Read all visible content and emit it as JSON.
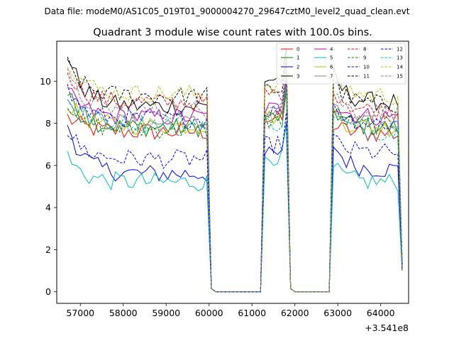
{
  "chart_data": {
    "type": "line",
    "suptitle": "Data file: modeM0/AS1C05_019T01_9000004270_29647cztM0_level2_quad_clean.evt",
    "title": "Quadrant 3 module wise count rates with 100.0s bins.",
    "xlabel": "",
    "ylabel": "",
    "x_offset_label": "+3.541e8",
    "xlim": [
      56450,
      64650
    ],
    "ylim": [
      -0.55,
      11.9
    ],
    "xticks": [
      57000,
      58000,
      59000,
      60000,
      61000,
      62000,
      63000,
      64000
    ],
    "xtick_labels": [
      "57000",
      "58000",
      "59000",
      "60000",
      "61000",
      "62000",
      "63000",
      "64000"
    ],
    "yticks": [
      0,
      2,
      4,
      6,
      8,
      10
    ],
    "ytick_labels": [
      "0",
      "2",
      "4",
      "6",
      "8",
      "10"
    ],
    "segments": [
      {
        "start": 56700,
        "end": 59950,
        "n": 33
      },
      {
        "start": 59950,
        "end": 61200,
        "n": 13,
        "zero": true
      },
      {
        "start": 61200,
        "end": 61800,
        "n": 7
      },
      {
        "start": 61800,
        "end": 62800,
        "n": 11,
        "zero": true
      },
      {
        "start": 62800,
        "end": 64500,
        "n": 18
      }
    ],
    "series": [
      {
        "name": "0",
        "color": "#ff0000",
        "dashed": false,
        "base": 7.6,
        "seg3": 8.2,
        "seg5": 7.5,
        "start": 8.3
      },
      {
        "name": "1",
        "color": "#008000",
        "dashed": false,
        "base": 7.8,
        "seg3": 8.3,
        "seg5": 7.8,
        "start": 9.4
      },
      {
        "name": "2",
        "color": "#0000ff",
        "dashed": false,
        "base": 5.6,
        "seg3": 6.5,
        "seg5": 5.8,
        "start": 8.0
      },
      {
        "name": "3",
        "color": "#000000",
        "dashed": false,
        "base": 8.8,
        "seg3": 10.1,
        "seg5": 9.0,
        "start": 11.3
      },
      {
        "name": "4",
        "color": "#bf00bf",
        "dashed": false,
        "base": 8.3,
        "seg3": 8.7,
        "seg5": 8.3,
        "start": 9.5
      },
      {
        "name": "5",
        "color": "#00bfbf",
        "dashed": false,
        "base": 5.2,
        "seg3": 6.4,
        "seg5": 5.2,
        "start": 6.4
      },
      {
        "name": "6",
        "color": "#bfbf00",
        "dashed": false,
        "base": 7.9,
        "seg3": 8.3,
        "seg5": 7.8,
        "start": 9.0
      },
      {
        "name": "7",
        "color": "#808080",
        "dashed": false,
        "base": 8.0,
        "seg3": 8.5,
        "seg5": 7.9,
        "start": 9.2
      },
      {
        "name": "8",
        "color": "#ff0000",
        "dashed": true,
        "base": 9.0,
        "seg3": 9.4,
        "seg5": 8.6,
        "start": 10.6
      },
      {
        "name": "9",
        "color": "#008000",
        "dashed": true,
        "base": 7.7,
        "seg3": 8.1,
        "seg5": 7.9,
        "start": 9.1
      },
      {
        "name": "10",
        "color": "#0000ff",
        "dashed": true,
        "base": 6.3,
        "seg3": 7.0,
        "seg5": 6.6,
        "start": 7.7
      },
      {
        "name": "11",
        "color": "#000000",
        "dashed": true,
        "base": 9.3,
        "seg3": 9.6,
        "seg5": 8.9,
        "start": 10.8
      },
      {
        "name": "12",
        "color": "#0000ff",
        "dashed": true,
        "base": 8.2,
        "seg3": 8.6,
        "seg5": 8.0,
        "start": 9.6
      },
      {
        "name": "13",
        "color": "#00bfbf",
        "dashed": true,
        "base": 8.0,
        "seg3": 8.0,
        "seg5": 7.6,
        "start": 9.3
      },
      {
        "name": "14",
        "color": "#bfbf00",
        "dashed": true,
        "base": 9.4,
        "seg3": 9.8,
        "seg5": 9.3,
        "start": 11.1
      },
      {
        "name": "15",
        "color": "#808080",
        "dashed": true,
        "base": 8.6,
        "seg3": 9.0,
        "seg5": 8.5,
        "start": 10.2
      }
    ]
  }
}
